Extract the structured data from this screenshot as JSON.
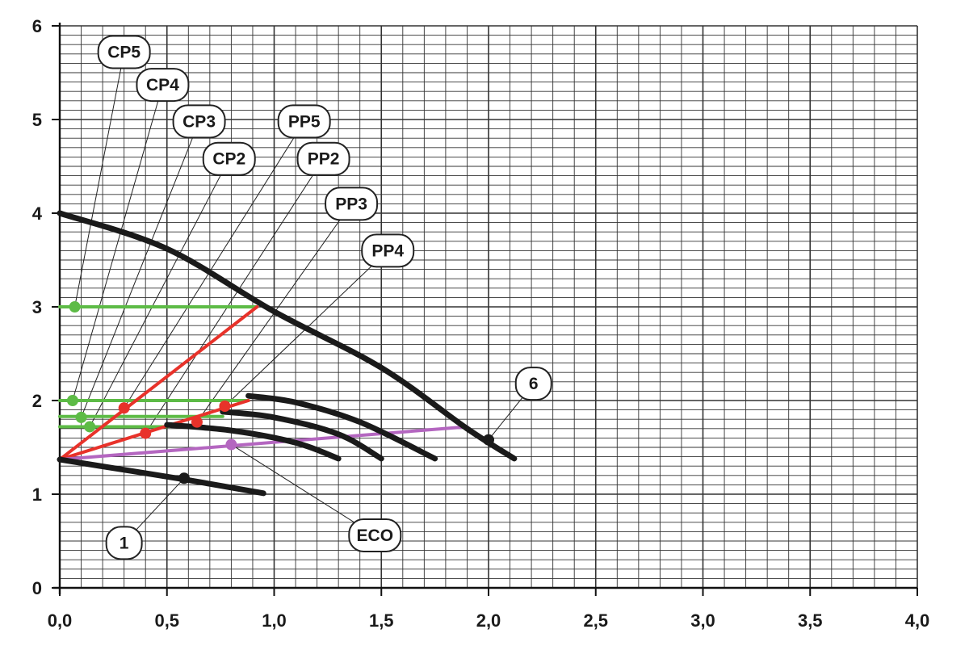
{
  "chart_data": {
    "type": "line",
    "xlim": [
      0,
      4.0
    ],
    "ylim": [
      0,
      6
    ],
    "x_ticks": [
      {
        "value": 0.0,
        "label": "0,0"
      },
      {
        "value": 0.5,
        "label": "0,5"
      },
      {
        "value": 1.0,
        "label": "1,0"
      },
      {
        "value": 1.5,
        "label": "1,5"
      },
      {
        "value": 2.0,
        "label": "2,0"
      },
      {
        "value": 2.5,
        "label": "2,5"
      },
      {
        "value": 3.0,
        "label": "3,0"
      },
      {
        "value": 3.5,
        "label": "3,5"
      },
      {
        "value": 4.0,
        "label": "4,0"
      }
    ],
    "y_ticks": [
      {
        "value": 0,
        "label": "0"
      },
      {
        "value": 1,
        "label": "1"
      },
      {
        "value": 2,
        "label": "2"
      },
      {
        "value": 3,
        "label": "3"
      },
      {
        "value": 4,
        "label": "4"
      },
      {
        "value": 5,
        "label": "5"
      },
      {
        "value": 6,
        "label": "6"
      }
    ],
    "grid": true,
    "colors": {
      "black": "#1a1a1a",
      "green": "#5dbb46",
      "red": "#e8322a",
      "purple": "#b466c0"
    },
    "black_curves": [
      {
        "id": "speed-6",
        "points": [
          [
            0.0,
            4.0
          ],
          [
            0.5,
            3.62
          ],
          [
            1.0,
            2.95
          ],
          [
            1.5,
            2.35
          ],
          [
            1.9,
            1.7
          ],
          [
            2.12,
            1.38
          ]
        ]
      },
      {
        "id": "speed-5",
        "points": [
          [
            0.88,
            2.05
          ],
          [
            1.1,
            1.98
          ],
          [
            1.4,
            1.77
          ],
          [
            1.75,
            1.38
          ]
        ]
      },
      {
        "id": "speed-4",
        "points": [
          [
            0.76,
            1.88
          ],
          [
            1.0,
            1.82
          ],
          [
            1.3,
            1.64
          ],
          [
            1.5,
            1.38
          ]
        ]
      },
      {
        "id": "speed-3",
        "points": [
          [
            0.5,
            1.74
          ],
          [
            0.8,
            1.68
          ],
          [
            1.1,
            1.55
          ],
          [
            1.3,
            1.38
          ]
        ]
      },
      {
        "id": "speed-1",
        "points": [
          [
            0.0,
            1.37
          ],
          [
            0.3,
            1.26
          ],
          [
            0.6,
            1.15
          ],
          [
            0.95,
            1.01
          ]
        ]
      }
    ],
    "green_lines": [
      {
        "y": 3.0,
        "x_end": 0.92
      },
      {
        "y": 2.0,
        "x_end": 0.88
      },
      {
        "y": 1.83,
        "x_end": 0.76
      },
      {
        "y": 1.72,
        "x_end": 0.5
      }
    ],
    "red_lines": [
      {
        "points": [
          [
            0.0,
            1.37
          ],
          [
            0.92,
            3.0
          ]
        ]
      },
      {
        "points": [
          [
            0.0,
            1.37
          ],
          [
            0.88,
            2.0
          ]
        ]
      }
    ],
    "purple_lines": [
      {
        "points": [
          [
            0.0,
            1.37
          ],
          [
            1.9,
            1.72
          ]
        ]
      }
    ],
    "markers": [
      {
        "x": 0.07,
        "y": 3.0,
        "color": "green"
      },
      {
        "x": 0.06,
        "y": 2.0,
        "color": "green"
      },
      {
        "x": 0.1,
        "y": 1.82,
        "color": "green"
      },
      {
        "x": 0.14,
        "y": 1.72,
        "color": "green"
      },
      {
        "x": 0.3,
        "y": 1.92,
        "color": "red"
      },
      {
        "x": 0.4,
        "y": 1.65,
        "color": "red"
      },
      {
        "x": 0.64,
        "y": 1.77,
        "color": "red"
      },
      {
        "x": 0.77,
        "y": 1.94,
        "color": "red"
      },
      {
        "x": 0.8,
        "y": 1.53,
        "color": "purple"
      },
      {
        "x": 0.58,
        "y": 1.17,
        "color": "black"
      },
      {
        "x": 2.0,
        "y": 1.58,
        "color": "black"
      }
    ],
    "annotations": [
      {
        "text": "CP5",
        "at": [
          0.3,
          5.72
        ],
        "target": [
          0.07,
          3.0
        ],
        "w": 1
      },
      {
        "text": "CP4",
        "at": [
          0.48,
          5.37
        ],
        "target": [
          0.06,
          2.0
        ],
        "w": 1
      },
      {
        "text": "CP3",
        "at": [
          0.65,
          4.98
        ],
        "target": [
          0.1,
          1.82
        ],
        "w": 1
      },
      {
        "text": "CP2",
        "at": [
          0.79,
          4.58
        ],
        "target": [
          0.14,
          1.72
        ],
        "w": 1
      },
      {
        "text": "PP5",
        "at": [
          1.14,
          4.98
        ],
        "target": [
          0.3,
          1.92
        ],
        "w": 1
      },
      {
        "text": "PP2",
        "at": [
          1.23,
          4.58
        ],
        "target": [
          0.4,
          1.65
        ],
        "w": 1
      },
      {
        "text": "PP3",
        "at": [
          1.36,
          4.1
        ],
        "target": [
          0.64,
          1.77
        ],
        "w": 1
      },
      {
        "text": "PP4",
        "at": [
          1.53,
          3.6
        ],
        "target": [
          0.77,
          1.94
        ],
        "w": 1
      },
      {
        "text": "6",
        "at": [
          2.21,
          2.18
        ],
        "target": [
          2.0,
          1.58
        ],
        "w": 0
      },
      {
        "text": "ECO",
        "at": [
          1.47,
          0.56
        ],
        "target": [
          0.8,
          1.53
        ],
        "w": 1
      },
      {
        "text": "1",
        "at": [
          0.3,
          0.48
        ],
        "target": [
          0.58,
          1.17
        ],
        "w": 0
      }
    ]
  }
}
